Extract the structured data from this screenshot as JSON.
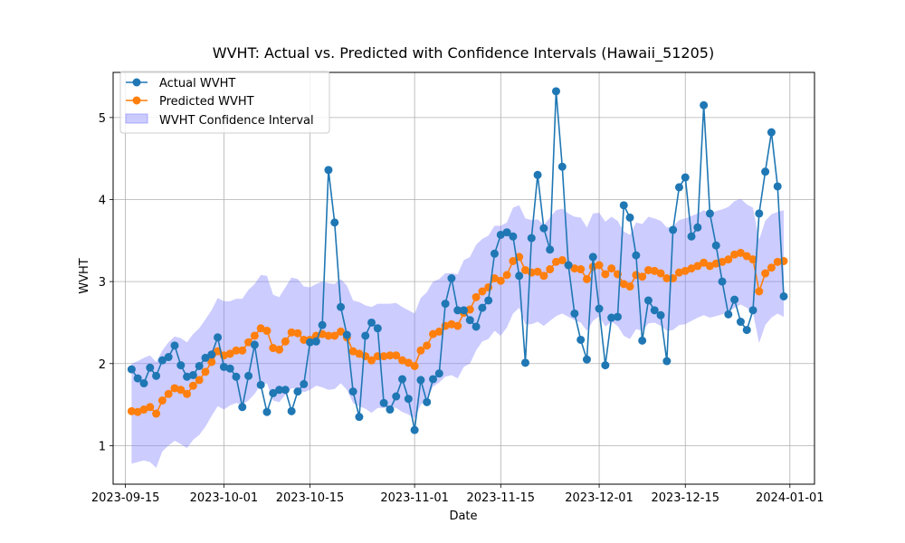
{
  "chart_data": {
    "type": "line",
    "title": "WVHT: Actual vs. Predicted with Confidence Intervals (Hawaii_51205)",
    "xlabel": "Date",
    "ylabel": "WVHT",
    "xlim": [
      "2023-09-13",
      "2024-01-05"
    ],
    "ylim": [
      0.53,
      5.55
    ],
    "x_ticks": [
      "2023-09-15",
      "2023-10-01",
      "2023-10-15",
      "2023-11-01",
      "2023-11-15",
      "2023-12-01",
      "2023-12-15",
      "2024-01-01"
    ],
    "y_ticks": [
      1,
      2,
      3,
      4,
      5
    ],
    "grid": true,
    "legend_position": "upper-left",
    "colors": {
      "actual": "#1f77b4",
      "predicted": "#ff7f0e",
      "band": "#8080ff"
    },
    "x": [
      "2023-09-16",
      "2023-09-17",
      "2023-09-18",
      "2023-09-19",
      "2023-09-20",
      "2023-09-21",
      "2023-09-22",
      "2023-09-23",
      "2023-09-24",
      "2023-09-25",
      "2023-09-26",
      "2023-09-27",
      "2023-09-28",
      "2023-09-29",
      "2023-09-30",
      "2023-10-01",
      "2023-10-02",
      "2023-10-03",
      "2023-10-04",
      "2023-10-05",
      "2023-10-06",
      "2023-10-07",
      "2023-10-08",
      "2023-10-09",
      "2023-10-10",
      "2023-10-11",
      "2023-10-12",
      "2023-10-13",
      "2023-10-14",
      "2023-10-15",
      "2023-10-16",
      "2023-10-17",
      "2023-10-18",
      "2023-10-19",
      "2023-10-20",
      "2023-10-21",
      "2023-10-22",
      "2023-10-23",
      "2023-10-24",
      "2023-10-25",
      "2023-10-26",
      "2023-10-27",
      "2023-10-28",
      "2023-10-29",
      "2023-10-30",
      "2023-10-31",
      "2023-11-01",
      "2023-11-02",
      "2023-11-03",
      "2023-11-04",
      "2023-11-05",
      "2023-11-06",
      "2023-11-07",
      "2023-11-08",
      "2023-11-09",
      "2023-11-10",
      "2023-11-11",
      "2023-11-12",
      "2023-11-13",
      "2023-11-14",
      "2023-11-15",
      "2023-11-16",
      "2023-11-17",
      "2023-11-18",
      "2023-11-19",
      "2023-11-20",
      "2023-11-21",
      "2023-11-22",
      "2023-11-23",
      "2023-11-24",
      "2023-11-25",
      "2023-11-26",
      "2023-11-27",
      "2023-11-28",
      "2023-11-29",
      "2023-11-30",
      "2023-12-01",
      "2023-12-02",
      "2023-12-03",
      "2023-12-04",
      "2023-12-05",
      "2023-12-06",
      "2023-12-07",
      "2023-12-08",
      "2023-12-09",
      "2023-12-10",
      "2023-12-11",
      "2023-12-12",
      "2023-12-13",
      "2023-12-14",
      "2023-12-15",
      "2023-12-16",
      "2023-12-17",
      "2023-12-18",
      "2023-12-19",
      "2023-12-20",
      "2023-12-21",
      "2023-12-22",
      "2023-12-23",
      "2023-12-24",
      "2023-12-25",
      "2023-12-26",
      "2023-12-27",
      "2023-12-28",
      "2023-12-29",
      "2023-12-30",
      "2023-12-31"
    ],
    "series": [
      {
        "name": "Actual WVHT",
        "values": [
          1.93,
          1.82,
          1.76,
          1.95,
          1.85,
          2.04,
          2.08,
          2.22,
          1.98,
          1.84,
          1.86,
          1.97,
          2.07,
          2.11,
          2.32,
          1.96,
          1.94,
          1.84,
          1.47,
          1.85,
          2.23,
          1.74,
          1.41,
          1.64,
          1.68,
          1.68,
          1.42,
          1.66,
          1.75,
          2.26,
          2.27,
          2.47,
          4.36,
          3.72,
          2.69,
          2.35,
          1.66,
          1.35,
          2.34,
          2.5,
          2.43,
          1.52,
          1.44,
          1.6,
          1.81,
          1.57,
          1.19,
          1.8,
          1.53,
          1.81,
          1.88,
          2.73,
          3.04,
          2.65,
          2.65,
          2.53,
          2.45,
          2.68,
          2.77,
          3.34,
          3.57,
          3.6,
          3.55,
          3.07,
          2.01,
          3.53,
          4.3,
          3.65,
          3.39,
          5.32,
          4.4,
          3.2,
          2.61,
          2.29,
          2.05,
          3.3,
          2.67,
          1.98,
          2.56,
          2.57,
          3.93,
          3.78,
          3.32,
          2.28,
          2.77,
          2.65,
          2.59,
          2.03,
          3.63,
          4.15,
          4.27,
          3.55,
          3.66,
          5.15,
          3.83,
          3.44,
          3.0,
          2.6,
          2.78,
          2.51,
          2.41,
          2.65,
          3.83,
          4.34,
          4.82,
          4.16,
          2.82
        ]
      },
      {
        "name": "Predicted WVHT",
        "values": [
          1.42,
          1.41,
          1.44,
          1.47,
          1.39,
          1.55,
          1.63,
          1.7,
          1.68,
          1.63,
          1.73,
          1.8,
          1.9,
          2.02,
          2.15,
          2.1,
          2.12,
          2.16,
          2.16,
          2.26,
          2.34,
          2.43,
          2.4,
          2.19,
          2.17,
          2.27,
          2.38,
          2.37,
          2.29,
          2.29,
          2.34,
          2.36,
          2.34,
          2.34,
          2.39,
          2.32,
          2.15,
          2.12,
          2.09,
          2.04,
          2.09,
          2.09,
          2.1,
          2.1,
          2.04,
          2.01,
          1.97,
          2.16,
          2.22,
          2.36,
          2.39,
          2.46,
          2.48,
          2.46,
          2.62,
          2.66,
          2.81,
          2.88,
          2.93,
          3.04,
          3.01,
          3.08,
          3.25,
          3.3,
          3.14,
          3.11,
          3.12,
          3.07,
          3.15,
          3.24,
          3.26,
          3.2,
          3.16,
          3.15,
          3.03,
          3.18,
          3.2,
          3.09,
          3.16,
          3.09,
          2.97,
          2.94,
          3.08,
          3.06,
          3.14,
          3.13,
          3.1,
          3.04,
          3.04,
          3.11,
          3.13,
          3.16,
          3.19,
          3.23,
          3.19,
          3.22,
          3.24,
          3.27,
          3.33,
          3.35,
          3.31,
          3.27,
          2.88,
          3.1,
          3.17,
          3.24,
          3.25
        ]
      }
    ],
    "band": {
      "name": "WVHT Confidence Interval",
      "lower": [
        0.78,
        0.8,
        0.82,
        0.8,
        0.73,
        0.93,
        1.0,
        1.06,
        1.02,
        0.97,
        1.07,
        1.13,
        1.23,
        1.36,
        1.48,
        1.44,
        1.49,
        1.52,
        1.5,
        1.55,
        1.63,
        1.74,
        1.76,
        1.55,
        1.53,
        1.62,
        1.7,
        1.7,
        1.65,
        1.68,
        1.73,
        1.71,
        1.68,
        1.69,
        1.76,
        1.68,
        1.52,
        1.48,
        1.45,
        1.4,
        1.46,
        1.46,
        1.47,
        1.46,
        1.41,
        1.38,
        1.33,
        1.5,
        1.56,
        1.72,
        1.77,
        1.84,
        1.86,
        1.82,
        1.96,
        2.0,
        2.16,
        2.27,
        2.3,
        2.4,
        2.34,
        2.44,
        2.61,
        2.68,
        2.48,
        2.48,
        2.51,
        2.46,
        2.52,
        2.58,
        2.61,
        2.57,
        2.53,
        2.5,
        2.4,
        2.52,
        2.58,
        2.45,
        2.51,
        2.46,
        2.34,
        2.3,
        2.42,
        2.4,
        2.49,
        2.5,
        2.46,
        2.4,
        2.41,
        2.47,
        2.48,
        2.52,
        2.56,
        2.59,
        2.56,
        2.58,
        2.6,
        2.63,
        2.68,
        2.72,
        2.68,
        2.62,
        2.25,
        2.47,
        2.56,
        2.61,
        2.57
      ],
      "upper": [
        2.0,
        2.03,
        2.07,
        2.1,
        2.02,
        2.16,
        2.26,
        2.33,
        2.31,
        2.26,
        2.36,
        2.43,
        2.54,
        2.65,
        2.8,
        2.76,
        2.76,
        2.79,
        2.79,
        2.9,
        2.97,
        3.08,
        3.07,
        2.84,
        2.81,
        2.93,
        3.05,
        3.03,
        2.94,
        2.93,
        2.97,
        3.0,
        2.98,
        2.97,
        3.03,
        2.95,
        2.77,
        2.75,
        2.71,
        2.69,
        2.73,
        2.73,
        2.73,
        2.74,
        2.69,
        2.65,
        2.61,
        2.8,
        2.87,
        3.0,
        3.03,
        3.1,
        3.1,
        3.09,
        3.26,
        3.3,
        3.45,
        3.52,
        3.56,
        3.68,
        3.68,
        3.72,
        3.9,
        3.93,
        3.77,
        3.75,
        3.76,
        3.69,
        3.78,
        3.87,
        3.89,
        3.83,
        3.79,
        3.78,
        3.66,
        3.83,
        3.84,
        3.73,
        3.79,
        3.74,
        3.61,
        3.57,
        3.72,
        3.7,
        3.79,
        3.77,
        3.74,
        3.66,
        3.67,
        3.75,
        3.77,
        3.8,
        3.83,
        3.87,
        3.83,
        3.86,
        3.88,
        3.91,
        3.98,
        4.01,
        3.94,
        3.9,
        3.51,
        3.74,
        3.82,
        3.85,
        3.87
      ]
    }
  }
}
